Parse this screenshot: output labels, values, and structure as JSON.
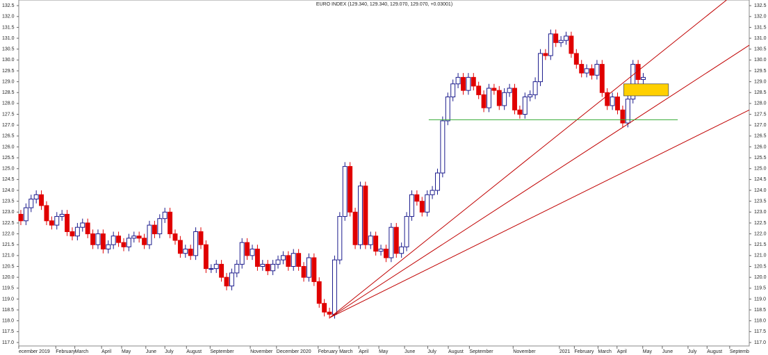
{
  "chart_data": {
    "type": "candlestick",
    "title": "EURO INDEX (129.340, 129.340, 129.070, 129.070, +0.03001)",
    "open": [
      122.9,
      122.6,
      123.2,
      123.6,
      123.8,
      123.3,
      122.6,
      122.4,
      122.8,
      122.9,
      122.1,
      121.9,
      122.3,
      122.5,
      122.0,
      121.5,
      122.0,
      121.3,
      121.5,
      121.9,
      121.6,
      121.4,
      121.8,
      121.9,
      121.8,
      121.5,
      122.4,
      122.0,
      122.7,
      123.0,
      122.0,
      121.7,
      121.1,
      121.3,
      121.0,
      122.1,
      121.5,
      120.4,
      120.4,
      120.6,
      120.0,
      119.6,
      120.2,
      120.6,
      121.6,
      121.0,
      121.3,
      120.5,
      120.6,
      120.3,
      120.6,
      120.8,
      121.0,
      120.5,
      121.1,
      120.5,
      120.0,
      120.9,
      119.8,
      118.8,
      118.4,
      118.3,
      120.8,
      122.8,
      125.1,
      123.0,
      121.5,
      124.2,
      121.5,
      121.9,
      121.2,
      121.3,
      120.9,
      122.3,
      121.1,
      121.4,
      122.8,
      123.8,
      123.5,
      123.0,
      123.8,
      124.0,
      124.8,
      127.2,
      128.3,
      128.9,
      129.2,
      128.6,
      129.2,
      128.8,
      128.4,
      127.8,
      128.7,
      128.6,
      127.9,
      128.5,
      128.7,
      127.7,
      127.5,
      128.3,
      128.4,
      129.0,
      130.3,
      130.2,
      131.2,
      130.8,
      130.9,
      131.1,
      130.3,
      129.8,
      129.4,
      129.6,
      129.3,
      129.8,
      128.5,
      127.9,
      128.3,
      127.7,
      127.1,
      128.2,
      129.8,
      129.1
    ],
    "high": [
      123.1,
      123.4,
      123.8,
      124.0,
      124.0,
      123.5,
      122.8,
      123.0,
      123.1,
      123.1,
      122.3,
      122.5,
      122.7,
      122.7,
      122.2,
      122.2,
      122.2,
      121.7,
      122.1,
      122.1,
      121.8,
      122.0,
      122.1,
      122.1,
      122.0,
      122.6,
      122.6,
      122.9,
      123.2,
      123.2,
      122.2,
      121.9,
      121.5,
      121.5,
      122.3,
      122.3,
      121.7,
      120.6,
      120.8,
      120.8,
      120.2,
      120.4,
      120.8,
      121.8,
      121.8,
      121.5,
      121.5,
      120.8,
      120.8,
      120.8,
      121.0,
      121.2,
      121.2,
      121.3,
      121.3,
      120.7,
      121.1,
      121.1,
      120.0,
      119.0,
      118.6,
      121.0,
      123.0,
      125.3,
      125.3,
      123.2,
      124.4,
      124.4,
      122.1,
      122.1,
      121.5,
      121.5,
      122.5,
      122.5,
      121.6,
      123.0,
      124.0,
      124.0,
      123.7,
      124.0,
      124.2,
      125.0,
      127.4,
      128.5,
      129.1,
      129.4,
      129.4,
      129.4,
      129.4,
      129.0,
      128.6,
      128.9,
      128.9,
      128.8,
      128.7,
      128.9,
      128.9,
      127.9,
      128.5,
      128.6,
      129.2,
      130.5,
      130.5,
      131.4,
      131.4,
      131.1,
      131.3,
      131.3,
      130.5,
      130.0,
      129.8,
      129.8,
      130.0,
      130.0,
      128.7,
      128.5,
      128.5,
      127.9,
      128.4,
      130.0,
      130.0,
      129.4
    ],
    "low": [
      122.4,
      122.4,
      123.0,
      123.4,
      123.1,
      122.4,
      122.2,
      122.2,
      122.6,
      121.9,
      121.7,
      121.7,
      122.1,
      121.8,
      121.3,
      121.3,
      121.1,
      121.1,
      121.3,
      121.4,
      121.2,
      121.2,
      121.6,
      121.6,
      121.3,
      121.3,
      121.8,
      121.8,
      122.5,
      121.8,
      121.5,
      120.9,
      120.9,
      120.8,
      120.8,
      121.3,
      120.2,
      120.2,
      120.2,
      119.8,
      119.4,
      119.4,
      120.0,
      120.4,
      120.8,
      120.8,
      120.3,
      120.3,
      120.1,
      120.1,
      120.4,
      120.6,
      120.3,
      120.3,
      120.3,
      119.8,
      119.8,
      119.6,
      118.6,
      118.2,
      118.1,
      118.1,
      120.6,
      122.6,
      122.8,
      121.3,
      121.3,
      121.3,
      121.3,
      121.0,
      121.0,
      120.7,
      120.7,
      120.9,
      120.9,
      121.2,
      122.6,
      123.3,
      122.8,
      122.8,
      123.6,
      123.8,
      124.6,
      127.0,
      128.1,
      128.7,
      128.4,
      128.4,
      128.6,
      128.2,
      127.6,
      127.6,
      128.4,
      127.7,
      127.7,
      128.3,
      127.5,
      127.3,
      127.3,
      128.1,
      128.2,
      128.8,
      130.0,
      130.0,
      130.6,
      130.6,
      130.7,
      130.1,
      129.6,
      129.2,
      129.2,
      129.1,
      129.1,
      128.3,
      127.7,
      127.7,
      127.5,
      126.9,
      126.9,
      128.0,
      128.9,
      128.9
    ],
    "close": [
      122.6,
      123.2,
      123.6,
      123.8,
      123.3,
      122.6,
      122.4,
      122.8,
      122.9,
      122.1,
      121.9,
      122.3,
      122.5,
      122.0,
      121.5,
      122.0,
      121.3,
      121.5,
      121.9,
      121.6,
      121.4,
      121.8,
      121.9,
      121.8,
      121.5,
      122.4,
      122.0,
      122.7,
      123.0,
      122.0,
      121.7,
      121.1,
      121.3,
      121.0,
      122.1,
      121.5,
      120.4,
      120.4,
      120.6,
      120.0,
      119.6,
      120.2,
      120.6,
      121.6,
      121.0,
      121.3,
      120.5,
      120.6,
      120.3,
      120.6,
      120.8,
      121.0,
      120.5,
      121.1,
      120.5,
      120.0,
      120.9,
      119.8,
      118.8,
      118.4,
      118.3,
      120.8,
      122.8,
      125.1,
      123.0,
      121.5,
      124.2,
      121.5,
      121.9,
      121.2,
      121.3,
      120.9,
      122.3,
      121.1,
      121.4,
      122.8,
      123.8,
      123.5,
      123.0,
      123.8,
      124.0,
      124.8,
      127.2,
      128.3,
      128.9,
      129.2,
      128.6,
      129.2,
      128.8,
      128.4,
      127.8,
      128.7,
      128.6,
      127.9,
      128.5,
      128.7,
      127.7,
      127.5,
      128.3,
      128.4,
      129.0,
      130.3,
      130.2,
      131.2,
      130.8,
      130.9,
      131.1,
      130.3,
      129.8,
      129.4,
      129.6,
      129.3,
      129.8,
      128.5,
      127.9,
      128.3,
      127.7,
      127.1,
      128.2,
      129.8,
      129.1,
      129.2
    ],
    "up_color": "#1a1a8c",
    "down_color": "#e00000",
    "xlim": [
      -0.4,
      141.6
    ],
    "ylim": [
      116.84,
      132.76
    ],
    "yticks": [
      {
        "value": 117,
        "label": "117.0"
      },
      117.5,
      {
        "value": 118,
        "label": "118.0"
      },
      118.5,
      {
        "value": 119,
        "label": "119.0"
      },
      119.5,
      {
        "value": 120,
        "label": "120.0"
      },
      120.5,
      {
        "value": 121,
        "label": "121.0"
      },
      121.5,
      {
        "value": 122,
        "label": "122.0"
      },
      122.5,
      {
        "value": 123,
        "label": "123.0"
      },
      123.5,
      {
        "value": 124,
        "label": "124.0"
      },
      124.5,
      {
        "value": 125,
        "label": "125.0"
      },
      125.5,
      {
        "value": 126,
        "label": "126.0"
      },
      126.5,
      {
        "value": 127,
        "label": "127.0"
      },
      127.5,
      {
        "value": 128,
        "label": "128.0"
      },
      128.5,
      {
        "value": 129,
        "label": "129.0"
      },
      129.5,
      {
        "value": 130,
        "label": "130.0"
      },
      130.5,
      {
        "value": 131,
        "label": "131.0"
      },
      131.5,
      {
        "value": 132,
        "label": "132.0"
      },
      132.5
    ],
    "xticks": [
      {
        "value": -0.4,
        "label": "ecember 2019"
      },
      {
        "value": 6.8,
        "label": "February"
      },
      {
        "value": 10.5,
        "label": "March"
      },
      {
        "value": 15.7,
        "label": "April"
      },
      {
        "value": 19.6,
        "label": "May"
      },
      {
        "value": 24.3,
        "label": "June"
      },
      {
        "value": 28,
        "label": "July"
      },
      {
        "value": 32.2,
        "label": "August"
      },
      {
        "value": 36.8,
        "label": "September"
      },
      {
        "value": 44.6,
        "label": "November"
      },
      {
        "value": 49.7,
        "label": "December 2020"
      },
      {
        "value": 57.8,
        "label": "February"
      },
      {
        "value": 61.9,
        "label": "March"
      },
      {
        "value": 65.7,
        "label": "April"
      },
      {
        "value": 69.6,
        "label": "May"
      },
      {
        "value": 74.6,
        "label": "June"
      },
      {
        "value": 79.1,
        "label": "July"
      },
      {
        "value": 83.1,
        "label": "August"
      },
      {
        "value": 87.2,
        "label": "September"
      },
      {
        "value": 95.7,
        "label": "November"
      },
      {
        "value": 104.7,
        "label": "2021"
      },
      {
        "value": 107.6,
        "label": "February"
      },
      {
        "value": 112.2,
        "label": "March"
      },
      {
        "value": 115.9,
        "label": "April"
      },
      {
        "value": 120.9,
        "label": "May"
      },
      {
        "value": 124.7,
        "label": "June"
      },
      {
        "value": 129.7,
        "label": "July"
      },
      {
        "value": 133.4,
        "label": "August"
      },
      {
        "value": 137.8,
        "label": "Septemb"
      }
    ],
    "lines": [
      {
        "x": [
          60.1,
          137.2
        ],
        "y": [
          118.15,
          132.76
        ],
        "color": "#c00000"
      },
      {
        "x": [
          60.1,
          141.6
        ],
        "y": [
          118.15,
          130.68
        ],
        "color": "#c00000"
      },
      {
        "x": [
          60.1,
          141.6
        ],
        "y": [
          118.15,
          127.7
        ],
        "color": "#c00000"
      },
      {
        "x": [
          79.3,
          127.7
        ],
        "y": [
          127.25,
          127.25
        ],
        "color": "#33aa33"
      }
    ],
    "box": {
      "x": [
        117.2,
        125.9
      ],
      "y": [
        128.35,
        128.9
      ],
      "color": "#ffd000"
    }
  }
}
